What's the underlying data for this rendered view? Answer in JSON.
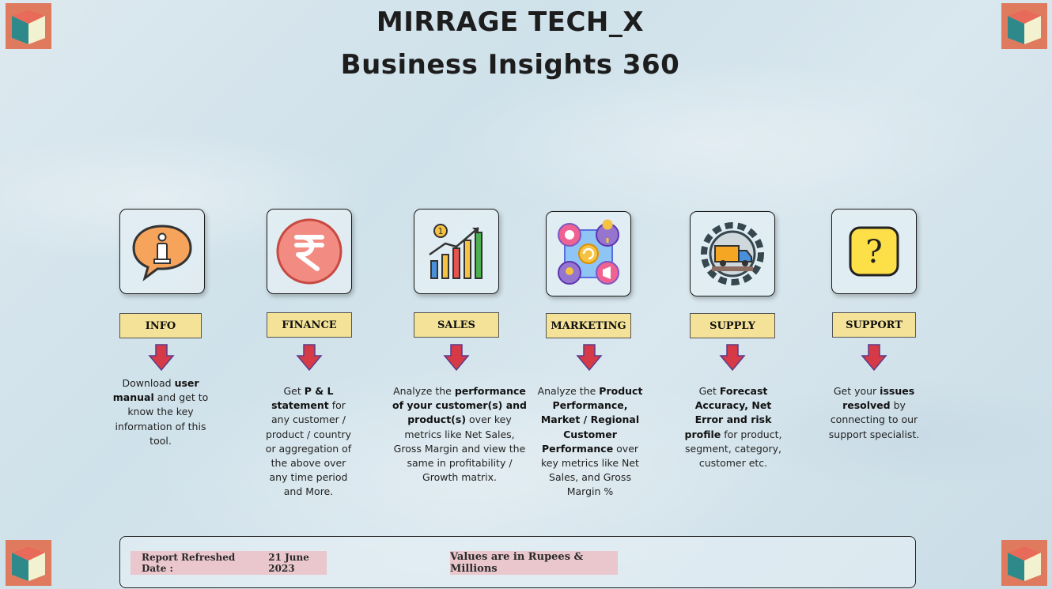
{
  "header": {
    "title": "MIRRAGE TECH_X",
    "subtitle": "Business Insights 360"
  },
  "modules": [
    {
      "label": "INFO",
      "icon": "info-icon",
      "description_parts": [
        {
          "text": "Download ",
          "bold": false
        },
        {
          "text": "user manual",
          "bold": true
        },
        {
          "text": " and get to know the key information of this tool.",
          "bold": false
        }
      ]
    },
    {
      "label": "FINANCE",
      "icon": "rupee-icon",
      "description_parts": [
        {
          "text": "Get  ",
          "bold": false
        },
        {
          "text": "P & L statement",
          "bold": true
        },
        {
          "text": " for any customer / product / country or aggregation of the above over any time period and More.",
          "bold": false
        }
      ]
    },
    {
      "label": "SALES",
      "icon": "bar-chart-growth-icon",
      "description_parts": [
        {
          "text": "Analyze the ",
          "bold": false
        },
        {
          "text": "performance of your customer(s) and product(s)",
          "bold": true
        },
        {
          "text": " over key metrics like Net Sales, Gross Margin and view the same in profitability / Growth matrix.",
          "bold": false
        }
      ]
    },
    {
      "label": "MARKETING",
      "icon": "marketing-cycle-icon",
      "description_parts": [
        {
          "text": "Analyze the ",
          "bold": false
        },
        {
          "text": "Product Performance, Market / Regional Customer Performance",
          "bold": true
        },
        {
          "text": " over key metrics like Net Sales, and Gross Margin %",
          "bold": false
        }
      ]
    },
    {
      "label": "SUPPLY",
      "icon": "delivery-truck-gear-icon",
      "description_parts": [
        {
          "text": "Get ",
          "bold": false
        },
        {
          "text": "Forecast Accuracy, Net Error and risk profile",
          "bold": true
        },
        {
          "text": " for product, segment, category, customer etc.",
          "bold": false
        }
      ]
    },
    {
      "label": "SUPPORT",
      "icon": "question-mark-icon",
      "description_parts": [
        {
          "text": "Get your ",
          "bold": false
        },
        {
          "text": "issues resolved",
          "bold": true
        },
        {
          "text": " by connecting to our support specialist.",
          "bold": false
        }
      ]
    }
  ],
  "footer": {
    "refreshed_label": "Report Refreshed Date :",
    "refreshed_value": "21 June 2023",
    "units_note": "Values are in Rupees & Millions"
  },
  "colors": {
    "label_bg": "#f3e297",
    "arrow": "#d63a47",
    "pill_bg": "#e9c7cd"
  }
}
